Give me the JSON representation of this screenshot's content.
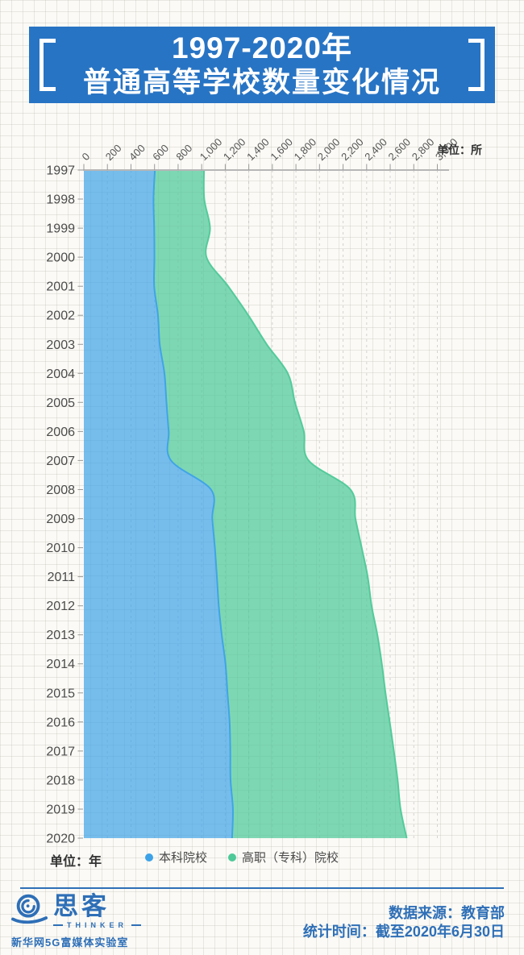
{
  "header": {
    "title_line1": "1997-2020年",
    "title_line2": "普通高等学校数量变化情况"
  },
  "axis": {
    "unit_top": "单位：所",
    "unit_bottom": "单位：年"
  },
  "legend": [
    {
      "label": "本科院校",
      "color": "#3da2e8"
    },
    {
      "label": "高职（专科）院校",
      "color": "#4ec998"
    }
  ],
  "footer": {
    "source": "数据来源：教育部",
    "time": "统计时间：截至2020年6月30日",
    "brand_cn": "思客",
    "brand_en": "THINKER",
    "brand_sub": "新华网5G富媒体实验室"
  },
  "chart_data": {
    "type": "area",
    "stacked": true,
    "smooth": true,
    "title": "1997-2020年普通高等学校数量变化情况",
    "x_axis": {
      "min": 0,
      "max": 3000,
      "tick_interval": 200,
      "position": "top",
      "label_rotate": 45,
      "unit": "所"
    },
    "y_axis": {
      "unit": "年"
    },
    "grid": "dashed-vertical",
    "legend_position": "bottom",
    "categories": [
      1997,
      1998,
      1999,
      2000,
      2001,
      2002,
      2003,
      2004,
      2005,
      2006,
      2007,
      2008,
      2009,
      2010,
      2011,
      2012,
      2013,
      2014,
      2015,
      2016,
      2017,
      2018,
      2019,
      2020
    ],
    "series": [
      {
        "name": "本科院校",
        "color": "#3da2e8",
        "values": [
          603,
          591,
          597,
          599,
          597,
          629,
          644,
          684,
          701,
          720,
          740,
          1079,
          1090,
          1112,
          1129,
          1145,
          1170,
          1202,
          1219,
          1237,
          1243,
          1245,
          1265,
          1258
        ]
      },
      {
        "name": "高职（专科）院校",
        "color": "#4ec998",
        "values": [
          417,
          431,
          474,
          442,
          628,
          767,
          908,
          1047,
          1091,
          1147,
          1168,
          1184,
          1215,
          1246,
          1280,
          1297,
          1321,
          1327,
          1341,
          1359,
          1388,
          1418,
          1423,
          1482
        ]
      }
    ],
    "totals": [
      1020,
      1022,
      1071,
      1041,
      1225,
      1396,
      1552,
      1731,
      1792,
      1867,
      1908,
      2263,
      2305,
      2358,
      2409,
      2442,
      2491,
      2529,
      2560,
      2596,
      2631,
      2663,
      2688,
      2740
    ]
  }
}
